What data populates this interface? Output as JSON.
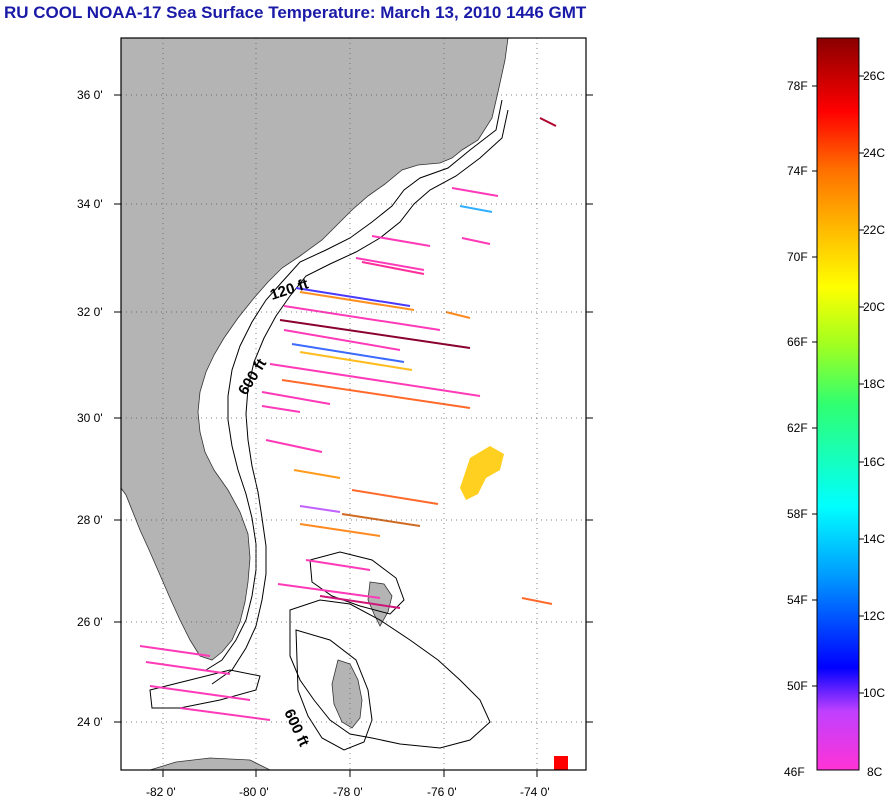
{
  "title": "RU COOL  NOAA-17  Sea Surface Temperature:  March 13, 2010 1446 GMT",
  "map": {
    "lat_labels": [
      "36 0'",
      "34 0'",
      "32 0'",
      "30 0'",
      "28 0'",
      "26 0'",
      "24 0'"
    ],
    "lon_labels": [
      "-82 0'",
      "-80 0'",
      "-78 0'",
      "-76 0'",
      "-74 0'"
    ],
    "contour_labels": [
      "120 ft",
      "600 ft",
      "600 ft"
    ],
    "colors": {
      "land": "#b4b4b4",
      "water": "#ffffff",
      "frame": "#000000"
    }
  },
  "colorbar": {
    "f_labels": [
      "78F",
      "74F",
      "70F",
      "66F",
      "62F",
      "58F",
      "54F",
      "50F",
      "46F"
    ],
    "c_labels": [
      "26C",
      "24C",
      "22C",
      "20C",
      "18C",
      "16C",
      "14C",
      "12C",
      "10C",
      "8C"
    ],
    "range_c": [
      8,
      27
    ]
  }
}
